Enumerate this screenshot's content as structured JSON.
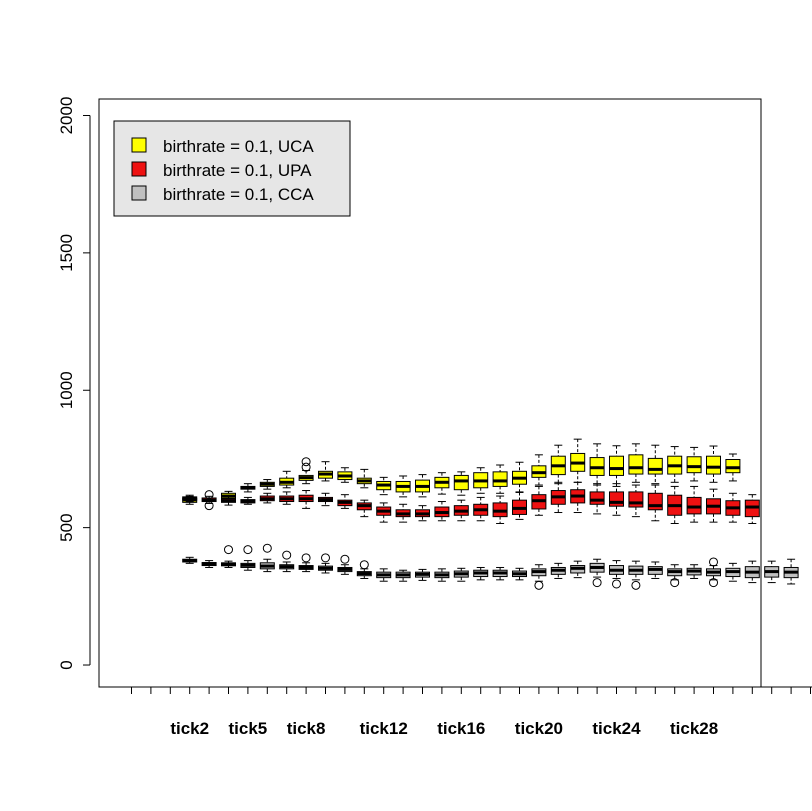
{
  "chart_data": {
    "type": "boxplot",
    "ylim": [
      -80,
      2060
    ],
    "y_ticks": [
      "0",
      "500",
      "1000",
      "1500",
      "2000"
    ],
    "y_tick_values": [
      0,
      500,
      1000,
      1500,
      2000
    ],
    "x_positions": 45,
    "x_labels": [
      {
        "label": "tick2",
        "pos": 4
      },
      {
        "label": "tick5",
        "pos": 7
      },
      {
        "label": "tick8",
        "pos": 10
      },
      {
        "label": "tick12",
        "pos": 14
      },
      {
        "label": "tick16",
        "pos": 18
      },
      {
        "label": "tick20",
        "pos": 22
      },
      {
        "label": "tick24",
        "pos": 26
      },
      {
        "label": "tick28",
        "pos": 30
      }
    ],
    "legend": {
      "placement": "top-left",
      "background": "#e6e6e6",
      "entries": [
        {
          "label": "birthrate = 0.1, UCA",
          "color": "#ffff00"
        },
        {
          "label": "birthrate = 0.1, UPA",
          "color": "#ee1111"
        },
        {
          "label": "birthrate = 0.1, CCA",
          "color": "#c0c0c0"
        }
      ]
    },
    "series": [
      {
        "color": "#ffff00",
        "boxes": [
          {
            "pos": 4,
            "lw": 585,
            "q1": 592,
            "med": 601,
            "q3": 607,
            "uw": 614,
            "out": []
          },
          {
            "pos": 6,
            "lw": 600,
            "q1": 607,
            "med": 615,
            "q3": 625,
            "uw": 632,
            "out": []
          },
          {
            "pos": 7,
            "lw": 630,
            "q1": 640,
            "med": 645,
            "q3": 650,
            "uw": 660,
            "out": []
          },
          {
            "pos": 8,
            "lw": 640,
            "q1": 650,
            "med": 658,
            "q3": 665,
            "uw": 675,
            "out": []
          },
          {
            "pos": 9,
            "lw": 645,
            "q1": 655,
            "med": 665,
            "q3": 680,
            "uw": 705,
            "out": []
          },
          {
            "pos": 10,
            "lw": 660,
            "q1": 672,
            "med": 682,
            "q3": 690,
            "uw": 708,
            "out": [
              720,
              740
            ]
          },
          {
            "pos": 11,
            "lw": 670,
            "q1": 680,
            "med": 695,
            "q3": 705,
            "uw": 740,
            "out": []
          },
          {
            "pos": 12,
            "lw": 665,
            "q1": 675,
            "med": 688,
            "q3": 703,
            "uw": 718,
            "out": []
          },
          {
            "pos": 13,
            "lw": 645,
            "q1": 660,
            "med": 670,
            "q3": 680,
            "uw": 712,
            "out": []
          },
          {
            "pos": 14,
            "lw": 620,
            "q1": 638,
            "med": 655,
            "q3": 668,
            "uw": 683,
            "out": []
          },
          {
            "pos": 15,
            "lw": 612,
            "q1": 630,
            "med": 650,
            "q3": 668,
            "uw": 688,
            "out": []
          },
          {
            "pos": 16,
            "lw": 612,
            "q1": 630,
            "med": 650,
            "q3": 673,
            "uw": 693,
            "out": []
          },
          {
            "pos": 17,
            "lw": 622,
            "q1": 645,
            "med": 665,
            "q3": 683,
            "uw": 700,
            "out": []
          },
          {
            "pos": 18,
            "lw": 618,
            "q1": 638,
            "med": 670,
            "q3": 690,
            "uw": 703,
            "out": []
          },
          {
            "pos": 19,
            "lw": 625,
            "q1": 645,
            "med": 670,
            "q3": 700,
            "uw": 718,
            "out": []
          },
          {
            "pos": 20,
            "lw": 625,
            "q1": 650,
            "med": 670,
            "q3": 703,
            "uw": 728,
            "out": []
          },
          {
            "pos": 21,
            "lw": 630,
            "q1": 658,
            "med": 680,
            "q3": 705,
            "uw": 738,
            "out": []
          },
          {
            "pos": 22,
            "lw": 655,
            "q1": 683,
            "med": 700,
            "q3": 725,
            "uw": 765,
            "out": []
          },
          {
            "pos": 23,
            "lw": 660,
            "q1": 693,
            "med": 725,
            "q3": 760,
            "uw": 800,
            "out": []
          },
          {
            "pos": 24,
            "lw": 665,
            "q1": 705,
            "med": 735,
            "q3": 770,
            "uw": 822,
            "out": []
          },
          {
            "pos": 25,
            "lw": 655,
            "q1": 690,
            "med": 718,
            "q3": 755,
            "uw": 805,
            "out": []
          },
          {
            "pos": 26,
            "lw": 650,
            "q1": 690,
            "med": 715,
            "q3": 760,
            "uw": 798,
            "out": []
          },
          {
            "pos": 27,
            "lw": 665,
            "q1": 695,
            "med": 718,
            "q3": 765,
            "uw": 805,
            "out": []
          },
          {
            "pos": 28,
            "lw": 660,
            "q1": 695,
            "med": 712,
            "q3": 752,
            "uw": 800,
            "out": []
          },
          {
            "pos": 29,
            "lw": 665,
            "q1": 695,
            "med": 725,
            "q3": 760,
            "uw": 795,
            "out": []
          },
          {
            "pos": 30,
            "lw": 670,
            "q1": 700,
            "med": 722,
            "q3": 758,
            "uw": 792,
            "out": []
          },
          {
            "pos": 31,
            "lw": 665,
            "q1": 695,
            "med": 720,
            "q3": 760,
            "uw": 797,
            "out": []
          },
          {
            "pos": 32,
            "lw": 670,
            "q1": 700,
            "med": 718,
            "q3": 748,
            "uw": 768,
            "out": []
          }
        ]
      },
      {
        "color": "#ee1111",
        "boxes": [
          {
            "pos": 4,
            "lw": 595,
            "q1": 600,
            "med": 606,
            "q3": 612,
            "uw": 618,
            "out": []
          },
          {
            "pos": 5,
            "lw": 588,
            "q1": 595,
            "med": 600,
            "q3": 608,
            "uw": 614,
            "out": [
              580,
              620
            ]
          },
          {
            "pos": 6,
            "lw": 582,
            "q1": 592,
            "med": 598,
            "q3": 605,
            "uw": 612,
            "out": []
          },
          {
            "pos": 7,
            "lw": 585,
            "q1": 590,
            "med": 597,
            "q3": 602,
            "uw": 610,
            "out": []
          },
          {
            "pos": 8,
            "lw": 590,
            "q1": 598,
            "med": 605,
            "q3": 615,
            "uw": 625,
            "out": []
          },
          {
            "pos": 9,
            "lw": 585,
            "q1": 595,
            "med": 605,
            "q3": 615,
            "uw": 630,
            "out": []
          },
          {
            "pos": 10,
            "lw": 570,
            "q1": 595,
            "med": 605,
            "q3": 618,
            "uw": 635,
            "out": []
          },
          {
            "pos": 11,
            "lw": 580,
            "q1": 595,
            "med": 602,
            "q3": 610,
            "uw": 625,
            "out": []
          },
          {
            "pos": 12,
            "lw": 570,
            "q1": 580,
            "med": 592,
            "q3": 600,
            "uw": 620,
            "out": []
          },
          {
            "pos": 13,
            "lw": 540,
            "q1": 565,
            "med": 580,
            "q3": 590,
            "uw": 600,
            "out": []
          },
          {
            "pos": 14,
            "lw": 520,
            "q1": 545,
            "med": 560,
            "q3": 575,
            "uw": 590,
            "out": []
          },
          {
            "pos": 15,
            "lw": 520,
            "q1": 540,
            "med": 550,
            "q3": 565,
            "uw": 585,
            "out": []
          },
          {
            "pos": 16,
            "lw": 525,
            "q1": 540,
            "med": 550,
            "q3": 565,
            "uw": 580,
            "out": []
          },
          {
            "pos": 17,
            "lw": 525,
            "q1": 540,
            "med": 555,
            "q3": 575,
            "uw": 595,
            "out": []
          },
          {
            "pos": 18,
            "lw": 525,
            "q1": 545,
            "med": 560,
            "q3": 580,
            "uw": 600,
            "out": []
          },
          {
            "pos": 19,
            "lw": 525,
            "q1": 545,
            "med": 565,
            "q3": 585,
            "uw": 610,
            "out": []
          },
          {
            "pos": 20,
            "lw": 515,
            "q1": 540,
            "med": 560,
            "q3": 590,
            "uw": 615,
            "out": []
          },
          {
            "pos": 21,
            "lw": 530,
            "q1": 548,
            "med": 570,
            "q3": 600,
            "uw": 628,
            "out": []
          },
          {
            "pos": 22,
            "lw": 545,
            "q1": 568,
            "med": 598,
            "q3": 620,
            "uw": 650,
            "out": []
          },
          {
            "pos": 23,
            "lw": 555,
            "q1": 585,
            "med": 612,
            "q3": 635,
            "uw": 665,
            "out": []
          },
          {
            "pos": 24,
            "lw": 555,
            "q1": 590,
            "med": 615,
            "q3": 638,
            "uw": 665,
            "out": []
          },
          {
            "pos": 25,
            "lw": 550,
            "q1": 585,
            "med": 600,
            "q3": 630,
            "uw": 660,
            "out": []
          },
          {
            "pos": 26,
            "lw": 545,
            "q1": 578,
            "med": 592,
            "q3": 630,
            "uw": 660,
            "out": []
          },
          {
            "pos": 27,
            "lw": 540,
            "q1": 575,
            "med": 590,
            "q3": 630,
            "uw": 655,
            "out": []
          },
          {
            "pos": 28,
            "lw": 525,
            "q1": 565,
            "med": 580,
            "q3": 625,
            "uw": 655,
            "out": []
          },
          {
            "pos": 29,
            "lw": 515,
            "q1": 545,
            "med": 580,
            "q3": 618,
            "uw": 650,
            "out": []
          },
          {
            "pos": 30,
            "lw": 520,
            "q1": 550,
            "med": 575,
            "q3": 610,
            "uw": 650,
            "out": []
          },
          {
            "pos": 31,
            "lw": 520,
            "q1": 550,
            "med": 578,
            "q3": 605,
            "uw": 640,
            "out": []
          },
          {
            "pos": 32,
            "lw": 520,
            "q1": 545,
            "med": 572,
            "q3": 598,
            "uw": 625,
            "out": []
          },
          {
            "pos": 33,
            "lw": 515,
            "q1": 540,
            "med": 575,
            "q3": 600,
            "uw": 620,
            "out": []
          }
        ]
      },
      {
        "color": "#c0c0c0",
        "boxes": [
          {
            "pos": 4,
            "lw": 370,
            "q1": 375,
            "med": 380,
            "q3": 385,
            "uw": 392,
            "out": []
          },
          {
            "pos": 5,
            "lw": 355,
            "q1": 362,
            "med": 368,
            "q3": 373,
            "uw": 380,
            "out": []
          },
          {
            "pos": 6,
            "lw": 355,
            "q1": 361,
            "med": 367,
            "q3": 372,
            "uw": 378,
            "out": [
              420
            ]
          },
          {
            "pos": 7,
            "lw": 345,
            "q1": 355,
            "med": 363,
            "q3": 370,
            "uw": 380,
            "out": [
              420
            ]
          },
          {
            "pos": 8,
            "lw": 340,
            "q1": 350,
            "med": 360,
            "q3": 372,
            "uw": 385,
            "out": [
              425
            ]
          },
          {
            "pos": 9,
            "lw": 340,
            "q1": 350,
            "med": 358,
            "q3": 365,
            "uw": 375,
            "out": [
              400
            ]
          },
          {
            "pos": 10,
            "lw": 340,
            "q1": 348,
            "med": 355,
            "q3": 362,
            "uw": 372,
            "out": [
              390
            ]
          },
          {
            "pos": 11,
            "lw": 335,
            "q1": 345,
            "med": 352,
            "q3": 360,
            "uw": 370,
            "out": [
              390
            ]
          },
          {
            "pos": 12,
            "lw": 330,
            "q1": 340,
            "med": 348,
            "q3": 355,
            "uw": 365,
            "out": [
              385
            ]
          },
          {
            "pos": 13,
            "lw": 315,
            "q1": 325,
            "med": 333,
            "q3": 340,
            "uw": 350,
            "out": [
              365
            ]
          },
          {
            "pos": 14,
            "lw": 305,
            "q1": 318,
            "med": 328,
            "q3": 338,
            "uw": 350,
            "out": []
          },
          {
            "pos": 15,
            "lw": 305,
            "q1": 318,
            "med": 328,
            "q3": 338,
            "uw": 345,
            "out": []
          },
          {
            "pos": 16,
            "lw": 308,
            "q1": 320,
            "med": 330,
            "q3": 338,
            "uw": 348,
            "out": []
          },
          {
            "pos": 17,
            "lw": 305,
            "q1": 318,
            "med": 328,
            "q3": 338,
            "uw": 350,
            "out": []
          },
          {
            "pos": 18,
            "lw": 305,
            "q1": 320,
            "med": 332,
            "q3": 342,
            "uw": 352,
            "out": []
          },
          {
            "pos": 19,
            "lw": 310,
            "q1": 322,
            "med": 335,
            "q3": 345,
            "uw": 355,
            "out": []
          },
          {
            "pos": 20,
            "lw": 310,
            "q1": 322,
            "med": 335,
            "q3": 345,
            "uw": 355,
            "out": []
          },
          {
            "pos": 21,
            "lw": 310,
            "q1": 322,
            "med": 332,
            "q3": 342,
            "uw": 352,
            "out": []
          },
          {
            "pos": 22,
            "lw": 305,
            "q1": 325,
            "med": 340,
            "q3": 350,
            "uw": 365,
            "out": [
              290
            ]
          },
          {
            "pos": 23,
            "lw": 315,
            "q1": 330,
            "med": 345,
            "q3": 355,
            "uw": 370,
            "out": []
          },
          {
            "pos": 24,
            "lw": 318,
            "q1": 335,
            "med": 352,
            "q3": 362,
            "uw": 378,
            "out": []
          },
          {
            "pos": 25,
            "lw": 320,
            "q1": 338,
            "med": 355,
            "q3": 370,
            "uw": 385,
            "out": [
              300
            ]
          },
          {
            "pos": 26,
            "lw": 315,
            "q1": 330,
            "med": 345,
            "q3": 362,
            "uw": 380,
            "out": [
              295
            ]
          },
          {
            "pos": 27,
            "lw": 310,
            "q1": 330,
            "med": 345,
            "q3": 360,
            "uw": 378,
            "out": [
              290
            ]
          },
          {
            "pos": 28,
            "lw": 315,
            "q1": 330,
            "med": 348,
            "q3": 358,
            "uw": 375,
            "out": []
          },
          {
            "pos": 29,
            "lw": 310,
            "q1": 325,
            "med": 340,
            "q3": 350,
            "uw": 365,
            "out": [
              300
            ]
          },
          {
            "pos": 30,
            "lw": 315,
            "q1": 328,
            "med": 342,
            "q3": 352,
            "uw": 365,
            "out": []
          },
          {
            "pos": 31,
            "lw": 310,
            "q1": 325,
            "med": 338,
            "q3": 350,
            "uw": 362,
            "out": [
              300,
              375
            ]
          },
          {
            "pos": 32,
            "lw": 305,
            "q1": 322,
            "med": 340,
            "q3": 352,
            "uw": 370,
            "out": []
          },
          {
            "pos": 33,
            "lw": 300,
            "q1": 318,
            "med": 338,
            "q3": 358,
            "uw": 378,
            "out": []
          },
          {
            "pos": 34,
            "lw": 300,
            "q1": 320,
            "med": 340,
            "q3": 358,
            "uw": 378,
            "out": []
          },
          {
            "pos": 35,
            "lw": 295,
            "q1": 318,
            "med": 338,
            "q3": 355,
            "uw": 385,
            "out": []
          }
        ]
      }
    ]
  }
}
